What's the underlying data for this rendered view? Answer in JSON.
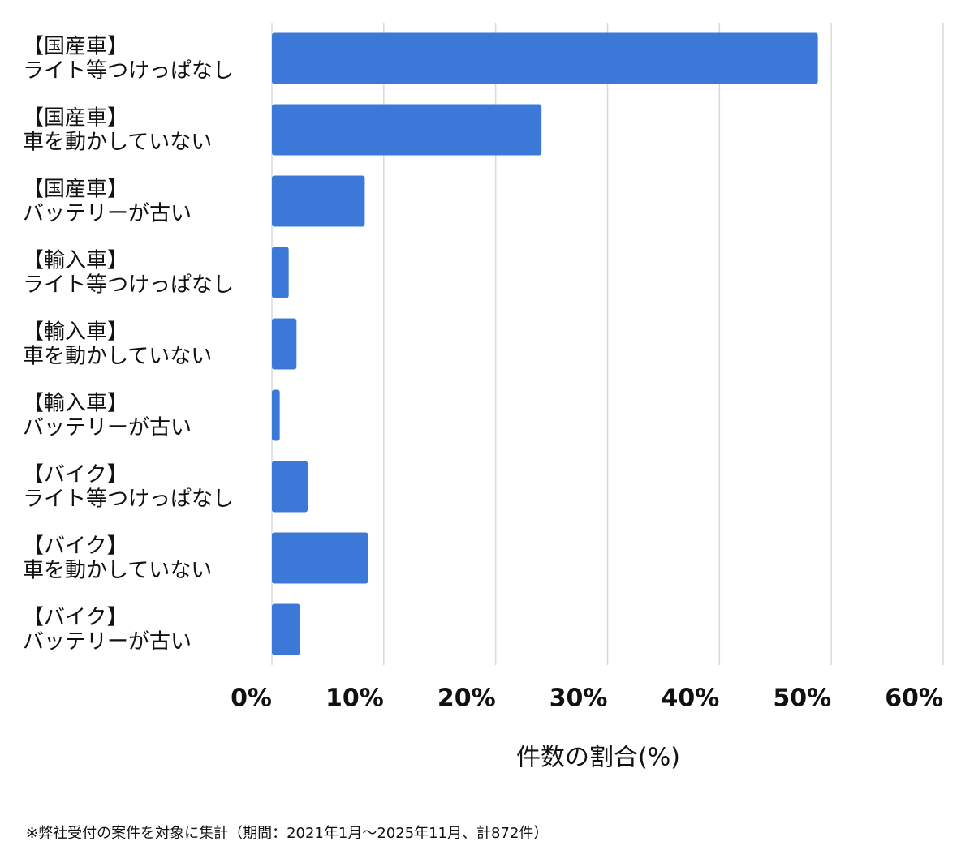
{
  "chart_data": {
    "type": "bar",
    "orientation": "horizontal",
    "categories": [
      [
        "【国産車】",
        "ライト等つけっぱなし"
      ],
      [
        "【国産車】",
        "車を動かしていない"
      ],
      [
        "【国産車】",
        "バッテリーが古い"
      ],
      [
        "【輸入車】",
        "ライト等つけっぱなし"
      ],
      [
        "【輸入車】",
        "車を動かしていない"
      ],
      [
        "【輸入車】",
        "バッテリーが古い"
      ],
      [
        "【バイク】",
        "ライト等つけっぱなし"
      ],
      [
        "【バイク】",
        "車を動かしていない"
      ],
      [
        "【バイク】",
        "バッテリーが古い"
      ]
    ],
    "values": [
      48.8,
      24.1,
      8.3,
      1.5,
      2.2,
      0.7,
      3.2,
      8.6,
      2.5
    ],
    "color": "#3c78d8",
    "xlim": [
      0,
      60
    ],
    "xticks": [
      {
        "value": 0,
        "label": "0%"
      },
      {
        "value": 10,
        "label": "10%"
      },
      {
        "value": 20,
        "label": "20%"
      },
      {
        "value": 30,
        "label": "30%"
      },
      {
        "value": 40,
        "label": "40%"
      },
      {
        "value": 50,
        "label": "50%"
      },
      {
        "value": 60,
        "label": "60%"
      }
    ],
    "grid": true,
    "x_label": "件数の割合(%)",
    "note": "※弊社受付の案件を対象に集計（期間：2021年1月〜2025年11月、計872件）"
  }
}
